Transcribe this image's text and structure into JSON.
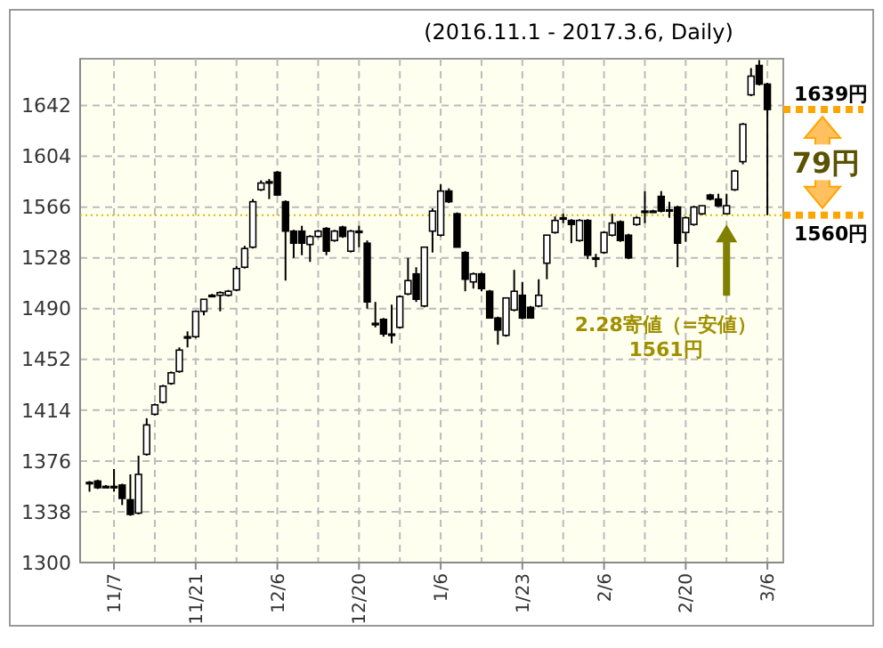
{
  "chart_data": {
    "type": "candlestick",
    "title": "(2016.11.1 - 2017.3.6, Daily)",
    "categories": [
      null,
      null,
      null,
      "11/7",
      null,
      null,
      null,
      null,
      null,
      null,
      null,
      null,
      null,
      "11/21",
      null,
      null,
      null,
      null,
      null,
      null,
      null,
      null,
      null,
      "12/6",
      null,
      null,
      null,
      null,
      null,
      null,
      null,
      null,
      null,
      "12/20",
      null,
      null,
      null,
      null,
      null,
      null,
      null,
      null,
      null,
      "1/6",
      null,
      null,
      null,
      null,
      null,
      null,
      null,
      null,
      null,
      "1/23",
      null,
      null,
      null,
      null,
      null,
      null,
      null,
      null,
      null,
      "2/6",
      null,
      null,
      null,
      null,
      null,
      null,
      null,
      null,
      null,
      "2/20",
      null,
      null,
      null,
      null,
      null,
      null,
      null,
      null,
      null,
      "3/6"
    ],
    "ohlc": [
      [
        1360,
        1361,
        1353,
        1360
      ],
      [
        1361,
        1362,
        1355,
        1356
      ],
      [
        1357,
        1358,
        1356,
        1357
      ],
      [
        1357,
        1370,
        1353,
        1357
      ],
      [
        1358,
        1359,
        1343,
        1348
      ],
      [
        1347,
        1366,
        1335,
        1336
      ],
      [
        1337,
        1380,
        1336,
        1366
      ],
      [
        1381,
        1408,
        1380,
        1403
      ],
      [
        1411,
        1419,
        1410,
        1418
      ],
      [
        1420,
        1433,
        1419,
        1432
      ],
      [
        1434,
        1443,
        1433,
        1442
      ],
      [
        1443,
        1461,
        1442,
        1459
      ],
      [
        1469,
        1473,
        1461,
        1469
      ],
      [
        1469,
        1488,
        1468,
        1488
      ],
      [
        1488,
        1497,
        1485,
        1497
      ],
      [
        1500,
        1501,
        1499,
        1500
      ],
      [
        1500,
        1503,
        1488,
        1502
      ],
      [
        1500,
        1504,
        1499,
        1503
      ],
      [
        1504,
        1522,
        1503,
        1520
      ],
      [
        1521,
        1537,
        1520,
        1535
      ],
      [
        1536,
        1572,
        1535,
        1570
      ],
      [
        1579,
        1586,
        1578,
        1584
      ],
      [
        1585,
        1587,
        1572,
        1585
      ],
      [
        1592,
        1593,
        1575,
        1575
      ],
      [
        1570,
        1571,
        1511,
        1548
      ],
      [
        1548,
        1549,
        1528,
        1539
      ],
      [
        1548,
        1552,
        1530,
        1539
      ],
      [
        1538,
        1545,
        1525,
        1544
      ],
      [
        1544,
        1549,
        1543,
        1548
      ],
      [
        1550,
        1551,
        1530,
        1533
      ],
      [
        1541,
        1549,
        1540,
        1548
      ],
      [
        1551,
        1552,
        1543,
        1544
      ],
      [
        1533,
        1549,
        1532,
        1548
      ],
      [
        1548,
        1552,
        1536,
        1548
      ],
      [
        1539,
        1541,
        1490,
        1495
      ],
      [
        1479,
        1495,
        1476,
        1479
      ],
      [
        1482,
        1483,
        1469,
        1471
      ],
      [
        1471,
        1493,
        1464,
        1471
      ],
      [
        1476,
        1500,
        1475,
        1499
      ],
      [
        1501,
        1528,
        1500,
        1511
      ],
      [
        1516,
        1521,
        1495,
        1497
      ],
      [
        1492,
        1536,
        1491,
        1536
      ],
      [
        1548,
        1565,
        1532,
        1563
      ],
      [
        1545,
        1583,
        1544,
        1578
      ],
      [
        1578,
        1580,
        1569,
        1570
      ],
      [
        1561,
        1562,
        1536,
        1536
      ],
      [
        1532,
        1533,
        1503,
        1512
      ],
      [
        1510,
        1517,
        1505,
        1516
      ],
      [
        1516,
        1517,
        1503,
        1505
      ],
      [
        1503,
        1504,
        1483,
        1483
      ],
      [
        1483,
        1484,
        1463,
        1474
      ],
      [
        1470,
        1498,
        1469,
        1498
      ],
      [
        1489,
        1519,
        1488,
        1503
      ],
      [
        1500,
        1510,
        1482,
        1483
      ],
      [
        1491,
        1492,
        1483,
        1483
      ],
      [
        1492,
        1512,
        1491,
        1500
      ],
      [
        1524,
        1545,
        1512,
        1545
      ],
      [
        1547,
        1559,
        1546,
        1556
      ],
      [
        1558,
        1561,
        1554,
        1558
      ],
      [
        1556,
        1557,
        1539,
        1553
      ],
      [
        1541,
        1557,
        1540,
        1556
      ],
      [
        1556,
        1557,
        1527,
        1530
      ],
      [
        1528,
        1531,
        1521,
        1528
      ],
      [
        1532,
        1548,
        1531,
        1547
      ],
      [
        1545,
        1561,
        1544,
        1554
      ],
      [
        1555,
        1556,
        1540,
        1541
      ],
      [
        1545,
        1546,
        1527,
        1528
      ],
      [
        1553,
        1559,
        1552,
        1558
      ],
      [
        1562,
        1578,
        1554,
        1563
      ],
      [
        1563,
        1564,
        1562,
        1563
      ],
      [
        1574,
        1578,
        1562,
        1563
      ],
      [
        1564,
        1570,
        1558,
        1564
      ],
      [
        1566,
        1567,
        1521,
        1539
      ],
      [
        1547,
        1559,
        1540,
        1558
      ],
      [
        1553,
        1567,
        1552,
        1566
      ],
      [
        1561,
        1567,
        1560,
        1567
      ],
      [
        1575,
        1576,
        1571,
        1572
      ],
      [
        1572,
        1576,
        1566,
        1567
      ],
      [
        1561,
        1576,
        1561,
        1567
      ],
      [
        1579,
        1594,
        1578,
        1593
      ],
      [
        1600,
        1629,
        1598,
        1628
      ],
      [
        1650,
        1670,
        1649,
        1664
      ],
      [
        1672,
        1676,
        1657,
        1658
      ],
      [
        1658,
        1659,
        1560,
        1639
      ]
    ],
    "ylim": [
      1300,
      1677
    ],
    "yticks": [
      1300,
      1338,
      1376,
      1414,
      1452,
      1490,
      1528,
      1566,
      1604,
      1642
    ],
    "grid": true,
    "ref_lines": [
      {
        "axis": "y",
        "value": 1560,
        "color": "#e8b400",
        "line_style": "dotted"
      }
    ],
    "annotations": [
      "1639円",
      "1560円",
      "79円",
      "2.28寄値（=安値）",
      "1561円"
    ]
  }
}
